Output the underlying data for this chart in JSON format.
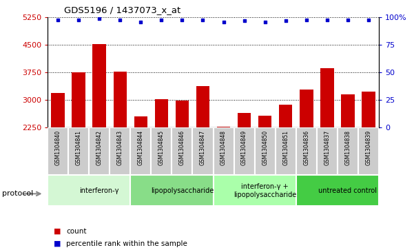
{
  "title": "GDS5196 / 1437073_x_at",
  "samples": [
    "GSM1304840",
    "GSM1304841",
    "GSM1304842",
    "GSM1304843",
    "GSM1304844",
    "GSM1304845",
    "GSM1304846",
    "GSM1304847",
    "GSM1304848",
    "GSM1304849",
    "GSM1304850",
    "GSM1304851",
    "GSM1304836",
    "GSM1304837",
    "GSM1304838",
    "GSM1304839"
  ],
  "counts": [
    3200,
    3750,
    4520,
    3780,
    2560,
    3020,
    2990,
    3380,
    2280,
    2650,
    2580,
    2880,
    3280,
    3870,
    3150,
    3220
  ],
  "percentile_ranks": [
    98,
    98,
    99,
    98,
    96,
    98,
    98,
    98,
    96,
    97,
    96,
    97,
    98,
    98,
    98,
    98
  ],
  "bar_color": "#cc0000",
  "dot_color": "#0000cc",
  "ylim_left": [
    2250,
    5250
  ],
  "ylim_right": [
    0,
    100
  ],
  "yticks_left": [
    2250,
    3000,
    3750,
    4500,
    5250
  ],
  "yticks_right": [
    0,
    25,
    50,
    75,
    100
  ],
  "ytick_labels_right": [
    "0",
    "25",
    "50",
    "75",
    "100%"
  ],
  "groups": [
    {
      "label": "interferon-γ",
      "start": 0,
      "end": 4,
      "color": "#d4f7d4"
    },
    {
      "label": "lipopolysaccharide",
      "start": 4,
      "end": 8,
      "color": "#88dd88"
    },
    {
      "label": "interferon-γ +\nlipopolysaccharide",
      "start": 8,
      "end": 12,
      "color": "#aaffaa"
    },
    {
      "label": "untreated control",
      "start": 12,
      "end": 16,
      "color": "#44cc44"
    }
  ],
  "legend_count_label": "count",
  "legend_percentile_label": "percentile rank within the sample",
  "protocol_label": "protocol",
  "background_color": "#ffffff",
  "tick_label_color_left": "#cc0000",
  "tick_label_color_right": "#0000cc",
  "sample_bg_color": "#cccccc",
  "sample_border_color": "#ffffff"
}
